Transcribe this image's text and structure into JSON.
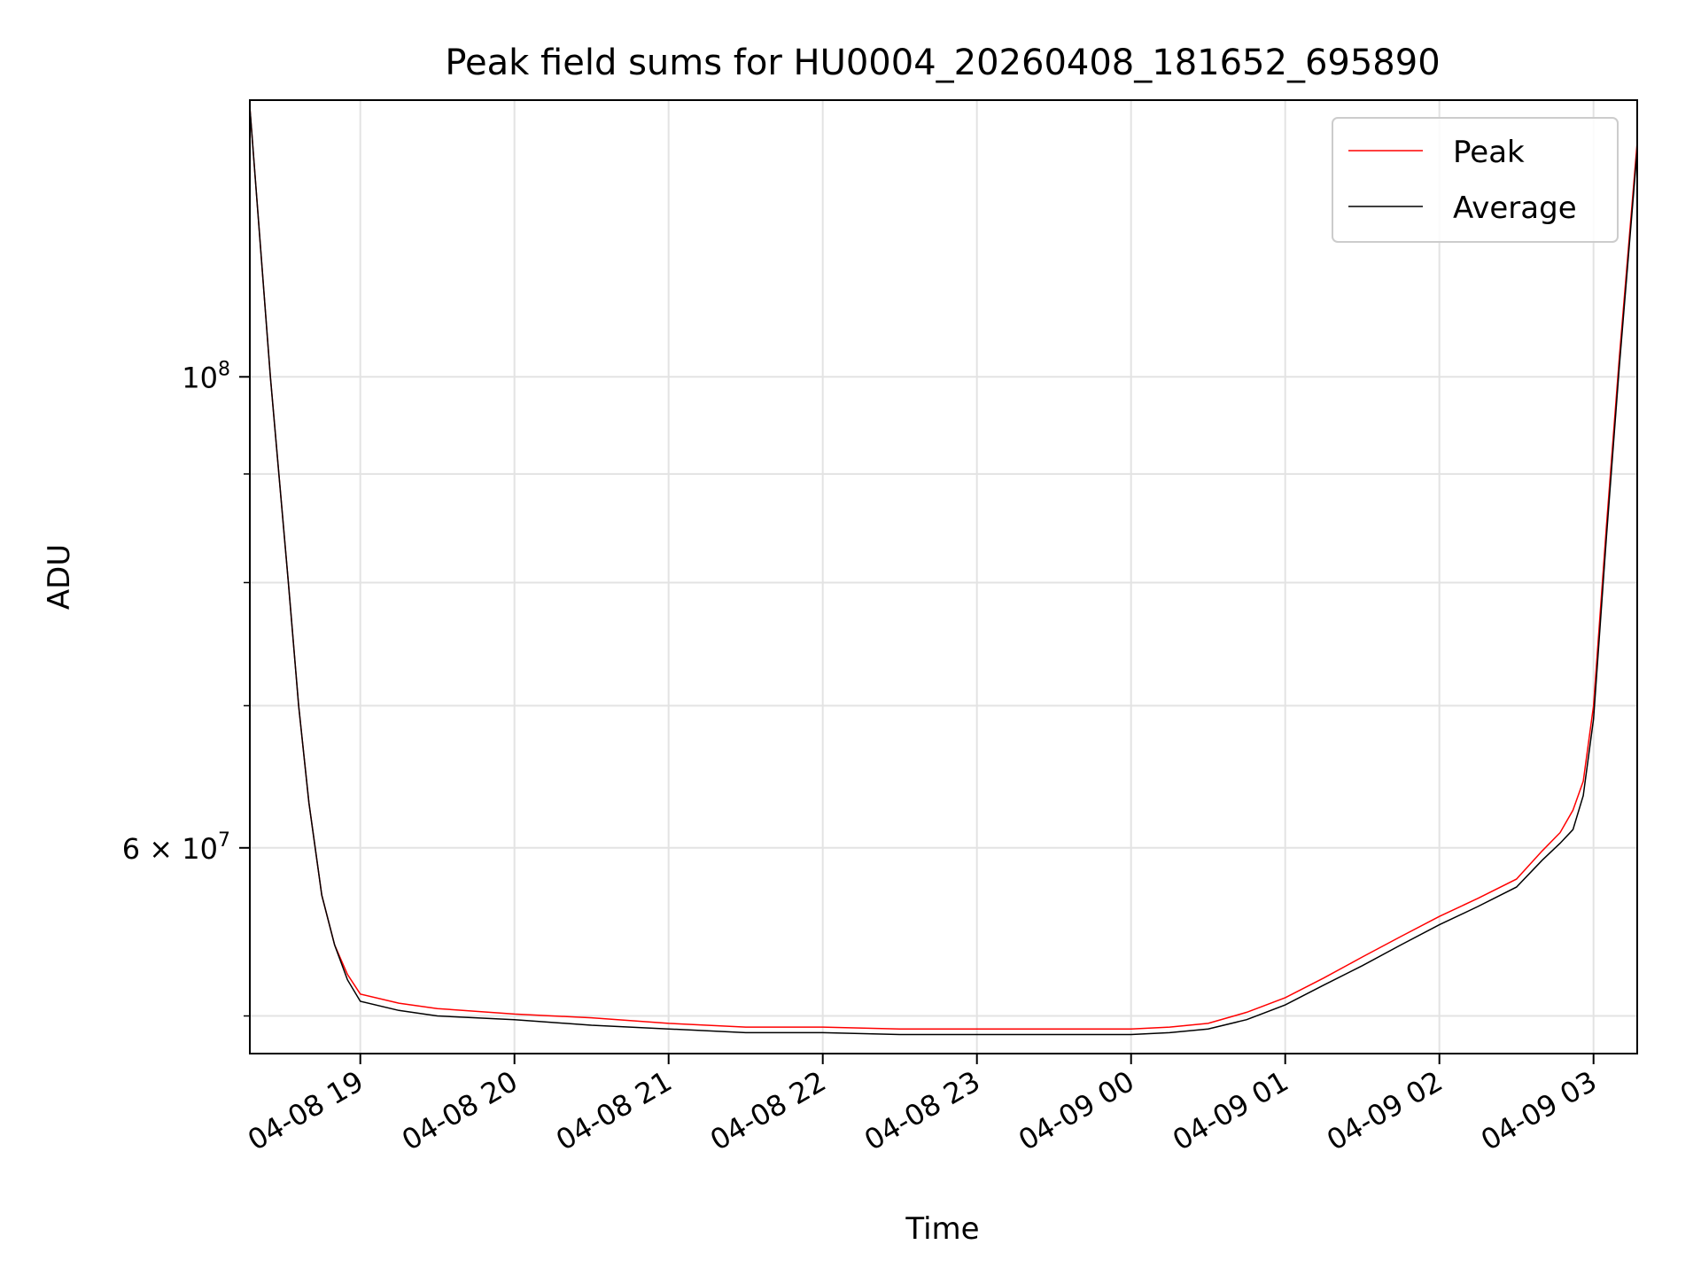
{
  "chart_data": {
    "type": "line",
    "title": "Peak field sums for HU0004_20260408_181652_695890",
    "xlabel": "Time",
    "ylabel": "ADU",
    "x_scale": "time",
    "y_scale": "log",
    "xlim": [
      "2026-04-08 18:17",
      "2026-04-09 03:17"
    ],
    "ylim": [
      48000000,
      135000000
    ],
    "grid": true,
    "legend_position": "upper right",
    "x_ticks": [
      "04-08 19",
      "04-08 20",
      "04-08 21",
      "04-08 22",
      "04-08 23",
      "04-09 00",
      "04-09 01",
      "04-09 02",
      "04-09 03"
    ],
    "x_tick_times": [
      "2026-04-08 19:00",
      "2026-04-08 20:00",
      "2026-04-08 21:00",
      "2026-04-08 22:00",
      "2026-04-08 23:00",
      "2026-04-09 00:00",
      "2026-04-09 01:00",
      "2026-04-09 02:00",
      "2026-04-09 03:00"
    ],
    "y_ticks_major": [
      {
        "value": 60000000,
        "label": "6 × 10",
        "exp": "7"
      },
      {
        "value": 100000000,
        "label": "10",
        "exp": "8"
      }
    ],
    "y_ticks_minor": [
      50000000,
      70000000,
      80000000,
      90000000
    ],
    "series": [
      {
        "name": "Peak",
        "color": "#ff0000",
        "x": [
          "2026-04-08 18:17",
          "2026-04-08 18:25",
          "2026-04-08 18:32",
          "2026-04-08 18:36",
          "2026-04-08 18:40",
          "2026-04-08 18:45",
          "2026-04-08 18:50",
          "2026-04-08 18:55",
          "2026-04-08 19:00",
          "2026-04-08 19:15",
          "2026-04-08 19:30",
          "2026-04-08 20:00",
          "2026-04-08 20:30",
          "2026-04-08 21:00",
          "2026-04-08 21:30",
          "2026-04-08 22:00",
          "2026-04-08 22:30",
          "2026-04-08 23:00",
          "2026-04-08 23:30",
          "2026-04-09 00:00",
          "2026-04-09 00:15",
          "2026-04-09 00:30",
          "2026-04-09 00:45",
          "2026-04-09 01:00",
          "2026-04-09 01:15",
          "2026-04-09 01:30",
          "2026-04-09 01:45",
          "2026-04-09 02:00",
          "2026-04-09 02:15",
          "2026-04-09 02:30",
          "2026-04-09 02:40",
          "2026-04-09 02:47",
          "2026-04-09 02:52",
          "2026-04-09 02:56",
          "2026-04-09 03:00",
          "2026-04-09 03:05",
          "2026-04-09 03:10",
          "2026-04-09 03:17"
        ],
        "y": [
          134000000,
          100000000,
          80000000,
          70000000,
          63000000,
          57000000,
          54000000,
          52300000,
          51200000,
          50700000,
          50400000,
          50100000,
          49900000,
          49600000,
          49400000,
          49400000,
          49300000,
          49300000,
          49300000,
          49300000,
          49400000,
          49600000,
          50200000,
          51000000,
          52100000,
          53300000,
          54500000,
          55700000,
          56800000,
          58000000,
          59800000,
          61000000,
          62500000,
          64500000,
          70000000,
          85000000,
          102000000,
          129000000
        ]
      },
      {
        "name": "Average",
        "color": "#000000",
        "x": [
          "2026-04-08 18:17",
          "2026-04-08 18:25",
          "2026-04-08 18:32",
          "2026-04-08 18:36",
          "2026-04-08 18:40",
          "2026-04-08 18:45",
          "2026-04-08 18:50",
          "2026-04-08 18:55",
          "2026-04-08 19:00",
          "2026-04-08 19:15",
          "2026-04-08 19:30",
          "2026-04-08 20:00",
          "2026-04-08 20:30",
          "2026-04-08 21:00",
          "2026-04-08 21:30",
          "2026-04-08 22:00",
          "2026-04-08 22:30",
          "2026-04-08 23:00",
          "2026-04-08 23:30",
          "2026-04-09 00:00",
          "2026-04-09 00:15",
          "2026-04-09 00:30",
          "2026-04-09 00:45",
          "2026-04-09 01:00",
          "2026-04-09 01:15",
          "2026-04-09 01:30",
          "2026-04-09 01:45",
          "2026-04-09 02:00",
          "2026-04-09 02:15",
          "2026-04-09 02:30",
          "2026-04-09 02:40",
          "2026-04-09 02:47",
          "2026-04-09 02:52",
          "2026-04-09 02:56",
          "2026-04-09 03:00",
          "2026-04-09 03:05",
          "2026-04-09 03:10",
          "2026-04-09 03:17"
        ],
        "y": [
          134000000,
          100000000,
          80000000,
          70000000,
          63000000,
          57000000,
          54000000,
          52000000,
          50800000,
          50300000,
          50000000,
          49800000,
          49500000,
          49300000,
          49100000,
          49100000,
          49000000,
          49000000,
          49000000,
          49000000,
          49100000,
          49300000,
          49800000,
          50600000,
          51700000,
          52800000,
          54000000,
          55200000,
          56300000,
          57500000,
          59200000,
          60300000,
          61200000,
          63500000,
          69000000,
          84000000,
          101000000,
          128000000
        ]
      }
    ]
  }
}
